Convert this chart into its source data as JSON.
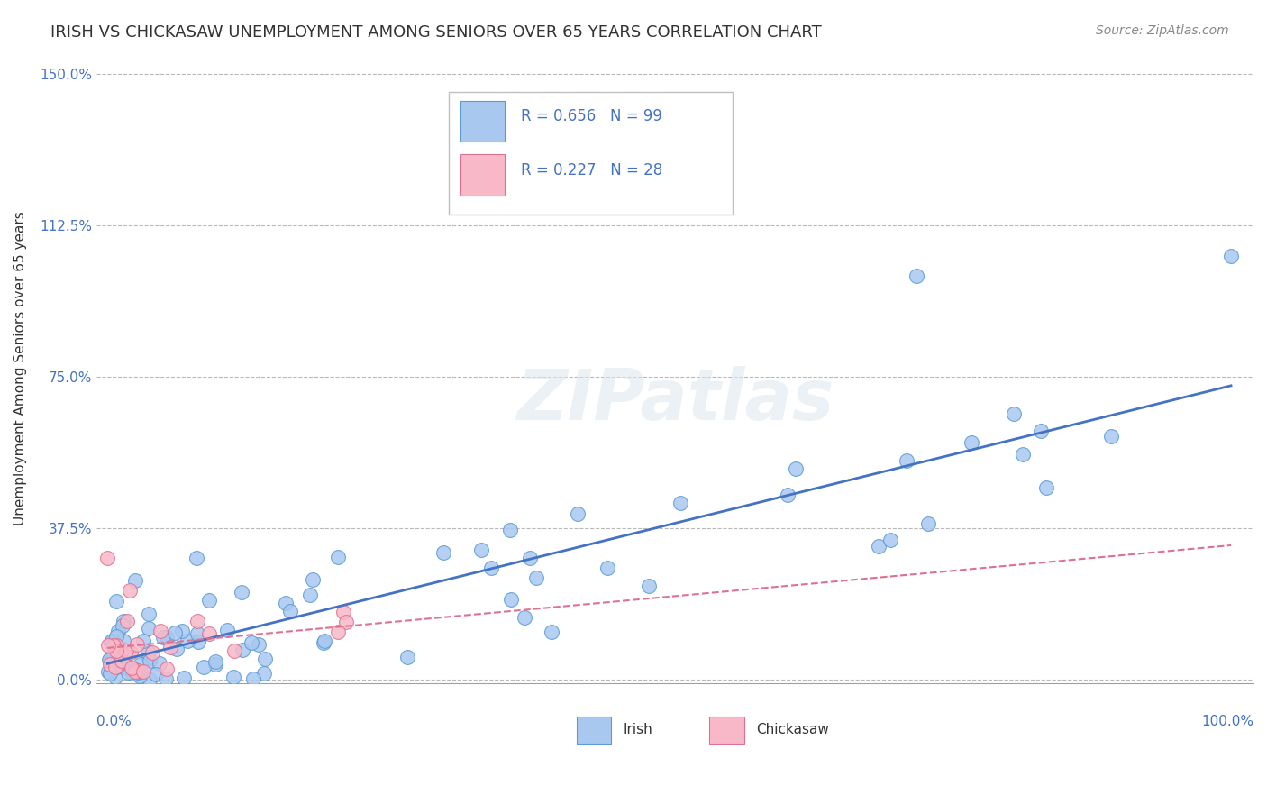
{
  "title": "IRISH VS CHICKASAW UNEMPLOYMENT AMONG SENIORS OVER 65 YEARS CORRELATION CHART",
  "source": "Source: ZipAtlas.com",
  "ylabel": "Unemployment Among Seniors over 65 years",
  "yticks": [
    0.0,
    0.375,
    0.75,
    1.125,
    1.5
  ],
  "ytick_labels": [
    "0.0%",
    "37.5%",
    "75.0%",
    "112.5%",
    "150.0%"
  ],
  "irish_color": "#a8c8f0",
  "irish_edge_color": "#5b9bd5",
  "chickasaw_color": "#f8b8c8",
  "chickasaw_edge_color": "#e07090",
  "irish_line_color": "#4472c4",
  "chickasaw_line_color": "#e07090",
  "watermark": "ZIPatlas",
  "legend_R_irish": "R = 0.656",
  "legend_N_irish": "N = 99",
  "legend_R_chickasaw": "R = 0.227",
  "legend_N_chickasaw": "N = 28"
}
